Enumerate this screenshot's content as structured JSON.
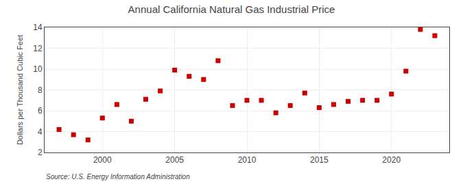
{
  "chart_data": {
    "type": "scatter",
    "title": "Annual California Natural Gas Industrial Price",
    "ylabel": "Dollars per Thousand Cubic Feet",
    "annotations": [
      "Source: U.S. Energy Information Administration"
    ],
    "x": [
      1997,
      1998,
      1999,
      2000,
      2001,
      2002,
      2003,
      2004,
      2005,
      2006,
      2007,
      2008,
      2009,
      2010,
      2011,
      2012,
      2013,
      2014,
      2015,
      2016,
      2017,
      2018,
      2019,
      2020,
      2021,
      2022,
      2023
    ],
    "values": [
      4.2,
      3.7,
      3.2,
      5.3,
      6.6,
      5.0,
      7.1,
      7.9,
      9.9,
      9.3,
      9.0,
      10.8,
      6.5,
      7.0,
      7.0,
      5.8,
      6.5,
      7.7,
      6.3,
      6.6,
      6.9,
      7.0,
      7.0,
      7.6,
      9.8,
      13.8,
      13.2
    ],
    "color": "#cc0000",
    "marker": "square",
    "xlim": [
      1996,
      2024
    ],
    "ylim": [
      2,
      14
    ],
    "xticks": [
      2000,
      2005,
      2010,
      2015,
      2020
    ],
    "yticks": [
      2,
      4,
      6,
      8,
      10,
      12,
      14
    ],
    "grid": true
  }
}
